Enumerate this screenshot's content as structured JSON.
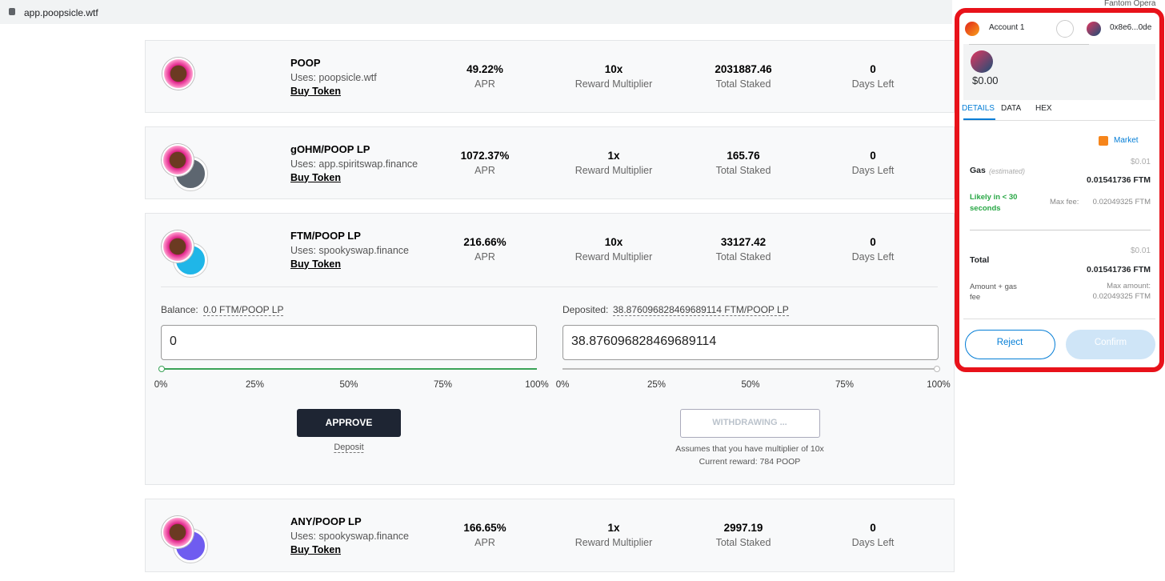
{
  "browser": {
    "url": "app.poopsicle.wtf",
    "network": "Fantom Opera"
  },
  "labels": {
    "apr": "APR",
    "multiplier": "Reward Multiplier",
    "staked": "Total Staked",
    "days": "Days Left",
    "buy": "Buy Token"
  },
  "pools": [
    {
      "name": "POOP",
      "uses": "Uses: poopsicle.wtf",
      "apr": "49.22%",
      "multiplier": "10x",
      "staked": "2031887.46",
      "days": "0"
    },
    {
      "name": "gOHM/POOP LP",
      "uses": "Uses: app.spiritswap.finance",
      "apr": "1072.37%",
      "multiplier": "1x",
      "staked": "165.76",
      "days": "0"
    },
    {
      "name": "FTM/POOP LP",
      "uses": "Uses: spookyswap.finance",
      "apr": "216.66%",
      "multiplier": "10x",
      "staked": "33127.42",
      "days": "0"
    },
    {
      "name": "ANY/POOP LP",
      "uses": "Uses: spookyswap.finance",
      "apr": "166.65%",
      "multiplier": "1x",
      "staked": "2997.19",
      "days": "0"
    }
  ],
  "expanded": {
    "balance_label": "Balance:",
    "balance_value": "0.0 FTM/POOP LP",
    "deposited_label": "Deposited:",
    "deposited_value": "38.876096828469689114 FTM/POOP LP",
    "input_left": "0",
    "input_right": "38.876096828469689114",
    "slider_ticks": [
      "0%",
      "25%",
      "50%",
      "75%",
      "100%"
    ],
    "approve": "APPROVE",
    "deposit": "Deposit",
    "withdraw": "WITHDRAWING ...",
    "note1": "Assumes that you have multiplier of 10x",
    "note2": "Current reward: 784 POOP"
  },
  "wallet": {
    "account": "Account 1",
    "address": "0x8e6...0de",
    "balance": "$0.00",
    "tabs": [
      "DETAILS",
      "DATA",
      "HEX"
    ],
    "market": "Market",
    "gas_label": "Gas",
    "estimated": "(estimated)",
    "gas_usd": "$0.01",
    "gas_ftm": "0.01541736 FTM",
    "likely": "Likely in < 30 seconds",
    "max_fee_label": "Max fee:",
    "max_fee": "0.02049325 FTM",
    "total_label": "Total",
    "total_usd": "$0.01",
    "total_ftm": "0.01541736 FTM",
    "amount_gas": "Amount + gas fee",
    "max_amount_label": "Max amount:",
    "max_amount": "0.02049325 FTM",
    "reject": "Reject",
    "confirm": "Confirm"
  }
}
